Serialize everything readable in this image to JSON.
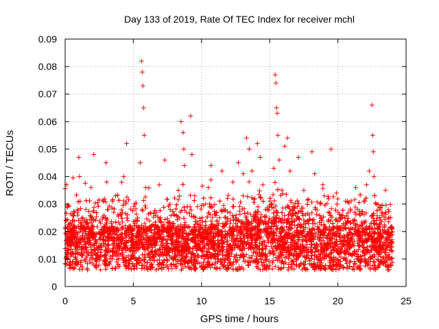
{
  "chart_data": {
    "type": "scatter",
    "title": "Day 133 of 2019, Rate Of TEC Index for receiver mchl",
    "xlabel": "GPS time / hours",
    "ylabel": "ROTI / TECUs",
    "xlim": [
      0,
      25
    ],
    "ylim": [
      0,
      0.09
    ],
    "xticks": [
      "0",
      "5",
      "10",
      "15",
      "20",
      "25"
    ],
    "yticks": [
      "0",
      "0.01",
      "0.02",
      "0.03",
      "0.04",
      "0.05",
      "0.06",
      "0.07",
      "0.08",
      "0.09"
    ],
    "grid": true,
    "marker": "+",
    "color": "#ff0000",
    "series": [
      {
        "values_x": [
          0.05,
          0.1,
          0.15,
          0.2,
          0.25,
          0.3,
          0.35,
          0.4,
          0.5,
          0.6,
          0.7,
          0.8,
          0.9,
          1.0,
          1.05,
          1.1,
          1.2,
          1.3,
          1.5,
          1.7,
          1.9,
          2.1,
          2.2,
          2.4,
          2.6,
          2.8,
          3.0,
          3.05,
          3.1,
          3.2,
          3.3,
          3.5,
          3.7,
          3.9,
          4.1,
          4.3,
          4.5,
          4.7,
          4.9,
          5.1,
          5.3,
          5.5,
          5.6,
          5.65,
          5.7,
          5.75,
          5.8,
          5.9,
          6.1,
          6.3,
          6.5,
          6.7,
          6.9,
          7.1,
          7.3,
          7.5,
          7.7,
          7.9,
          8.1,
          8.3,
          8.5,
          8.65,
          8.7,
          8.75,
          8.9,
          9.1,
          9.2,
          9.3,
          9.5,
          9.7,
          9.9,
          10.1,
          10.3,
          10.5,
          10.7,
          10.9,
          11.1,
          11.3,
          11.5,
          11.7,
          11.9,
          12.1,
          12.3,
          12.5,
          12.7,
          12.9,
          13.1,
          13.3,
          13.5,
          13.7,
          13.9,
          14.1,
          14.3,
          14.5,
          14.7,
          14.9,
          15.1,
          15.3,
          15.4,
          15.45,
          15.5,
          15.55,
          15.6,
          15.7,
          15.9,
          16.1,
          16.3,
          16.5,
          16.7,
          16.9,
          17.1,
          17.3,
          17.5,
          17.7,
          17.9,
          18.1,
          18.3,
          18.5,
          18.7,
          18.9,
          19.1,
          19.3,
          19.5,
          19.7,
          19.9,
          20.1,
          20.3,
          20.5,
          20.7,
          20.9,
          21.1,
          21.3,
          21.5,
          21.7,
          21.9,
          22.1,
          22.3,
          22.5,
          22.55,
          22.6,
          22.65,
          22.7,
          22.9,
          23.1,
          23.3,
          23.5,
          23.7,
          23.9
        ],
        "values_y": [
          0.01,
          0.037,
          0.029,
          0.012,
          0.02,
          0.008,
          0.015,
          0.011,
          0.018,
          0.009,
          0.022,
          0.014,
          0.028,
          0.047,
          0.04,
          0.031,
          0.012,
          0.025,
          0.009,
          0.017,
          0.036,
          0.048,
          0.019,
          0.011,
          0.023,
          0.031,
          0.045,
          0.038,
          0.028,
          0.015,
          0.009,
          0.02,
          0.033,
          0.012,
          0.026,
          0.04,
          0.052,
          0.018,
          0.011,
          0.03,
          0.024,
          0.045,
          0.082,
          0.078,
          0.073,
          0.065,
          0.055,
          0.036,
          0.014,
          0.022,
          0.011,
          0.027,
          0.037,
          0.017,
          0.046,
          0.013,
          0.028,
          0.01,
          0.021,
          0.035,
          0.06,
          0.056,
          0.05,
          0.044,
          0.027,
          0.019,
          0.062,
          0.048,
          0.033,
          0.015,
          0.024,
          0.011,
          0.03,
          0.036,
          0.044,
          0.018,
          0.027,
          0.013,
          0.042,
          0.022,
          0.032,
          0.014,
          0.038,
          0.025,
          0.045,
          0.019,
          0.011,
          0.054,
          0.05,
          0.042,
          0.032,
          0.052,
          0.047,
          0.037,
          0.028,
          0.016,
          0.021,
          0.043,
          0.077,
          0.074,
          0.065,
          0.063,
          0.055,
          0.046,
          0.035,
          0.051,
          0.054,
          0.042,
          0.029,
          0.016,
          0.047,
          0.022,
          0.035,
          0.013,
          0.026,
          0.049,
          0.041,
          0.018,
          0.03,
          0.037,
          0.014,
          0.027,
          0.05,
          0.021,
          0.034,
          0.012,
          0.026,
          0.018,
          0.031,
          0.014,
          0.024,
          0.036,
          0.011,
          0.022,
          0.031,
          0.037,
          0.042,
          0.066,
          0.055,
          0.049,
          0.04,
          0.033,
          0.021,
          0.028,
          0.014,
          0.035,
          0.025,
          0.01
        ]
      }
    ],
    "density_note": ""
  }
}
